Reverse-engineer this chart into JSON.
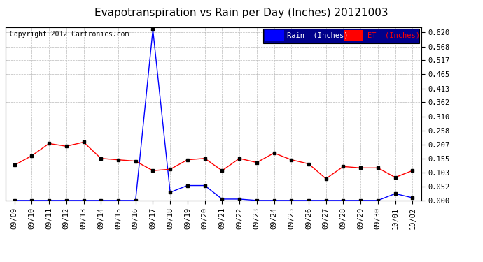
{
  "title": "Evapotranspiration vs Rain per Day (Inches) 20121003",
  "copyright": "Copyright 2012 Cartronics.com",
  "legend_rain": "Rain  (Inches)",
  "legend_et": "ET  (Inches)",
  "x_labels": [
    "09/09",
    "09/10",
    "09/11",
    "09/12",
    "09/13",
    "09/14",
    "09/15",
    "09/16",
    "09/17",
    "09/18",
    "09/19",
    "09/20",
    "09/21",
    "09/22",
    "09/23",
    "09/24",
    "09/25",
    "09/26",
    "09/27",
    "09/28",
    "09/29",
    "09/30",
    "10/01",
    "10/02"
  ],
  "rain_values": [
    0.0,
    0.0,
    0.0,
    0.0,
    0.0,
    0.0,
    0.0,
    0.0,
    0.63,
    0.03,
    0.055,
    0.055,
    0.005,
    0.005,
    0.0,
    0.0,
    0.0,
    0.0,
    0.0,
    0.0,
    0.0,
    0.0,
    0.025,
    0.01
  ],
  "et_values": [
    0.13,
    0.165,
    0.21,
    0.2,
    0.215,
    0.155,
    0.15,
    0.145,
    0.11,
    0.115,
    0.15,
    0.155,
    0.11,
    0.155,
    0.14,
    0.175,
    0.15,
    0.135,
    0.08,
    0.125,
    0.12,
    0.12,
    0.085,
    0.11
  ],
  "y_ticks": [
    0.0,
    0.052,
    0.103,
    0.155,
    0.207,
    0.258,
    0.31,
    0.362,
    0.413,
    0.465,
    0.517,
    0.568,
    0.62
  ],
  "ylim": [
    0.0,
    0.638
  ],
  "rain_color": "#0000ff",
  "et_color": "#ff0000",
  "background_color": "#ffffff",
  "grid_color": "#bbbbbb",
  "title_fontsize": 11,
  "copyright_fontsize": 7,
  "tick_fontsize": 7.5,
  "legend_fontsize": 7.5,
  "border_color": "#000000"
}
